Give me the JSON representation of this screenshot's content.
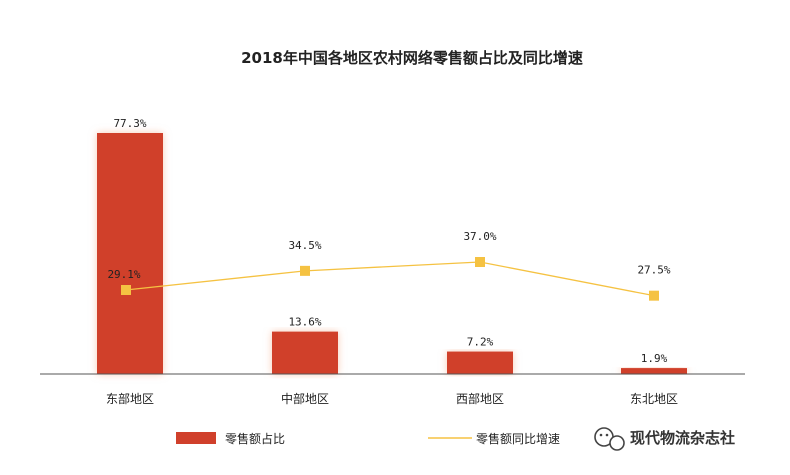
{
  "chart_data": {
    "type": "bar",
    "title": "2018年中国各地区农村网络零售额占比及同比增速",
    "categories": [
      "东部地区",
      "中部地区",
      "西部地区",
      "东北地区"
    ],
    "series": [
      {
        "name": "零售额占比",
        "type": "bar",
        "values": [
          77.3,
          13.6,
          7.2,
          1.9
        ],
        "labels": [
          "77.3%",
          "13.6%",
          "7.2%",
          "1.9%"
        ],
        "color": "#D0402B"
      },
      {
        "name": "零售额同比增速",
        "type": "line",
        "values": [
          29.1,
          34.5,
          37.0,
          27.5
        ],
        "labels": [
          "29.1%",
          "34.5%",
          "37.0%",
          "27.5%"
        ],
        "color": "#F5C242"
      }
    ],
    "ylim": [
      0,
      80
    ],
    "grid": false,
    "legend": "bottom"
  },
  "watermark": {
    "text": "现代物流杂志社",
    "icon": "wechat-icon"
  }
}
